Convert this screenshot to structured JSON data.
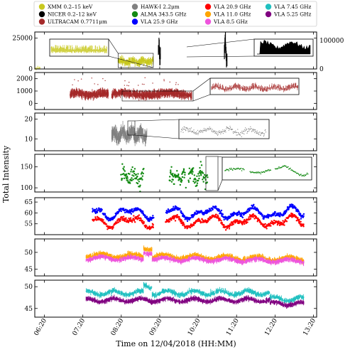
{
  "chart_data": {
    "type": "scatter",
    "xlabel": "Time on 12/04/2018 (HH:MM)",
    "ylabel": "Total Intensity",
    "x_ticks": [
      "06:20",
      "07:20",
      "08:20",
      "09:20",
      "10:20",
      "11:20",
      "12:20",
      "13:20"
    ],
    "xlim": [
      "06:05",
      "13:25"
    ],
    "legend_position": "top",
    "legend": [
      {
        "name": "XMM 0.2–15 keV",
        "color": "#c8c81e"
      },
      {
        "name": "NICER 0.2–12 keV",
        "color": "#000000"
      },
      {
        "name": "ULTRACAM 0.7711μm",
        "color": "#a52a2a"
      },
      {
        "name": "HAWK-I 2.2μm",
        "color": "#808080"
      },
      {
        "name": "ALMA 343.5 GHz",
        "color": "#138a13"
      },
      {
        "name": "VLA 25.9 GHz",
        "color": "#0000ff"
      },
      {
        "name": "VLA 20.9 GHz",
        "color": "#ff0000"
      },
      {
        "name": "VLA 11.0 GHz",
        "color": "#ffa500"
      },
      {
        "name": "VLA 8.5 GHz",
        "color": "#ee55dd"
      },
      {
        "name": "VLA 7.45 GHz",
        "color": "#20c0c0"
      },
      {
        "name": "VLA 5.25 GHz",
        "color": "#800080"
      }
    ],
    "panels": [
      {
        "id": "xray",
        "ylim": [
          0,
          30000
        ],
        "yticks": [
          "0",
          "25000"
        ],
        "ylim_right": [
          0,
          130000
        ],
        "yticks_right": [
          "0",
          "100000"
        ],
        "series": [
          {
            "name": "XMM 0.2–15 keV",
            "color": "#c8c81e",
            "x": [
              "06:05",
              "06:10",
              "08:15",
              "09:10"
            ],
            "y": [
              0,
              1500,
              8000,
              8000
            ]
          },
          {
            "name": "NICER 0.2–12 keV",
            "color": "#000000",
            "x": [
              "09:18",
              "09:20",
              "11:00",
              "11:05"
            ],
            "y": [
              0,
              30000,
              0,
              35000
            ]
          }
        ]
      },
      {
        "id": "ultracam",
        "ylim": [
          -500,
          2500
        ],
        "yticks": [
          "0",
          "1000",
          "2000"
        ],
        "series": [
          {
            "name": "ULTRACAM 0.7711μm",
            "color": "#a52a2a",
            "x": [
              "07:00",
              "08:00",
              "08:05",
              "10:10"
            ],
            "y": [
              800,
              800,
              800,
              800
            ]
          }
        ]
      },
      {
        "id": "hawki",
        "ylim": [
          4,
          23
        ],
        "yticks": [
          "10",
          "20"
        ],
        "series": [
          {
            "name": "HAWK-I 2.2μm",
            "color": "#808080",
            "x": [
              "08:05",
              "09:00"
            ],
            "y": [
              12,
              12
            ]
          }
        ]
      },
      {
        "id": "alma",
        "ylim": [
          90,
          180
        ],
        "yticks": [
          "100",
          "150"
        ],
        "series": [
          {
            "name": "ALMA 343.5 GHz",
            "color": "#138a13",
            "x": [
              "08:20",
              "08:55",
              "09:35",
              "10:35"
            ],
            "y": [
              125,
              125,
              125,
              125
            ]
          }
        ]
      },
      {
        "id": "vla_high",
        "ylim": [
          50,
          67
        ],
        "yticks": [
          "55",
          "60",
          "65"
        ],
        "series": [
          {
            "name": "VLA 25.9 GHz",
            "color": "#0000ff",
            "x": [
              "07:35",
              "09:10",
              "09:30",
              "13:05"
            ],
            "y": [
              60,
              60,
              60,
              60
            ]
          },
          {
            "name": "VLA 20.9 GHz",
            "color": "#ff0000",
            "x": [
              "07:35",
              "09:10",
              "09:30",
              "13:05"
            ],
            "y": [
              56,
              56,
              56,
              56
            ]
          }
        ]
      },
      {
        "id": "vla_mid",
        "ylim": [
          43,
          54
        ],
        "yticks": [
          "45",
          "50"
        ],
        "series": [
          {
            "name": "VLA 11.0 GHz",
            "color": "#ffa500",
            "x": [
              "07:25",
              "13:05"
            ],
            "y": [
              49,
              48
            ]
          },
          {
            "name": "VLA 8.5 GHz",
            "color": "#ee55dd",
            "x": [
              "07:25",
              "13:05"
            ],
            "y": [
              48,
              47.5
            ]
          }
        ]
      },
      {
        "id": "vla_low",
        "ylim": [
          43,
          51.5
        ],
        "yticks": [
          "45",
          "50"
        ],
        "series": [
          {
            "name": "VLA 7.45 GHz",
            "color": "#20c0c0",
            "x": [
              "07:25",
              "12:20",
              "12:25",
              "13:05"
            ],
            "y": [
              48.5,
              48.5,
              47,
              47
            ]
          },
          {
            "name": "VLA 5.25 GHz",
            "color": "#800080",
            "x": [
              "07:25",
              "12:20",
              "12:25",
              "13:05"
            ],
            "y": [
              46.8,
              46.8,
              46,
              46
            ]
          }
        ]
      }
    ]
  }
}
